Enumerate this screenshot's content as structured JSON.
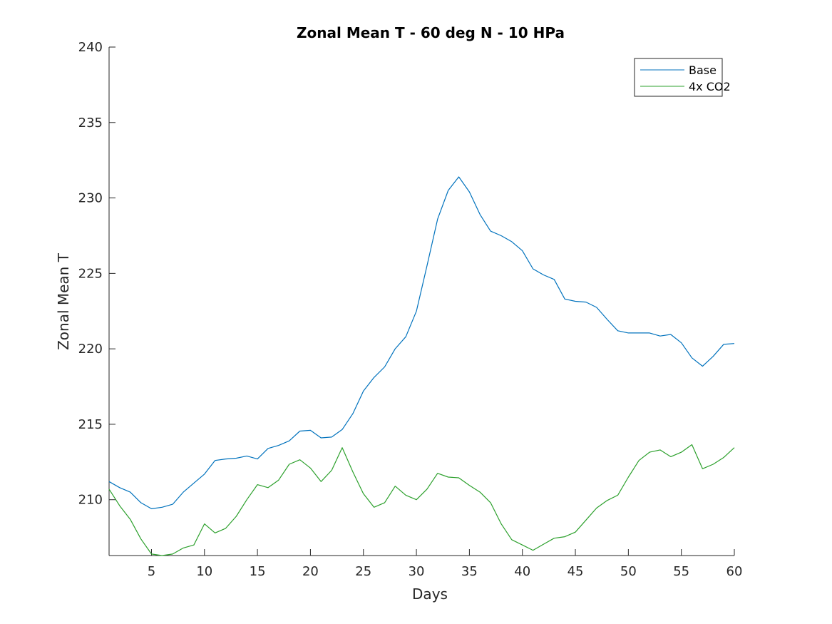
{
  "chart_data": {
    "type": "line",
    "title": "Zonal Mean T - 60 deg N - 10 HPa",
    "xlabel": "Days",
    "ylabel": "Zonal Mean T",
    "xlim": [
      1,
      60
    ],
    "ylim": [
      206.3,
      240
    ],
    "xticks": [
      5,
      10,
      15,
      20,
      25,
      30,
      35,
      40,
      45,
      50,
      55,
      60
    ],
    "yticks": [
      210,
      215,
      220,
      225,
      230,
      235,
      240
    ],
    "grid": false,
    "legend_position": "top-right",
    "x": [
      1,
      2,
      3,
      4,
      5,
      6,
      7,
      8,
      9,
      10,
      11,
      12,
      13,
      14,
      15,
      16,
      17,
      18,
      19,
      20,
      21,
      22,
      23,
      24,
      25,
      26,
      27,
      28,
      29,
      30,
      31,
      32,
      33,
      34,
      35,
      36,
      37,
      38,
      39,
      40,
      41,
      42,
      43,
      44,
      45,
      46,
      47,
      48,
      49,
      50,
      51,
      52,
      53,
      54,
      55,
      56,
      57,
      58,
      59,
      60
    ],
    "series": [
      {
        "name": "Base",
        "color": "#0072BD",
        "values": [
          211.2,
          210.8,
          210.5,
          209.8,
          209.4,
          209.5,
          209.7,
          210.5,
          211.1,
          211.7,
          212.6,
          212.7,
          212.75,
          212.9,
          212.7,
          213.4,
          213.6,
          213.9,
          214.55,
          214.6,
          214.1,
          214.15,
          214.65,
          215.7,
          217.2,
          218.1,
          218.8,
          220.0,
          220.8,
          222.5,
          225.5,
          228.6,
          230.5,
          231.4,
          230.4,
          228.9,
          227.8,
          227.5,
          227.1,
          226.5,
          225.3,
          224.9,
          224.6,
          223.3,
          223.15,
          223.1,
          222.75,
          221.95,
          221.2,
          221.05,
          221.05,
          221.05,
          220.85,
          220.95,
          220.4,
          219.4,
          218.85,
          219.5,
          220.3,
          220.35
        ]
      },
      {
        "name": "4x CO2",
        "color": "#2CA02C",
        "values": [
          210.7,
          209.6,
          208.7,
          207.4,
          206.4,
          206.3,
          206.4,
          206.8,
          207.0,
          208.4,
          207.8,
          208.1,
          208.9,
          210.0,
          211.0,
          210.8,
          211.3,
          212.35,
          212.65,
          212.1,
          211.2,
          211.95,
          213.45,
          211.85,
          210.4,
          209.5,
          209.8,
          210.9,
          210.3,
          210.0,
          210.7,
          211.75,
          211.5,
          211.45,
          210.95,
          210.5,
          209.8,
          208.4,
          207.35,
          207.0,
          206.65,
          207.05,
          207.45,
          207.55,
          207.85,
          208.65,
          209.45,
          209.95,
          210.3,
          211.5,
          212.6,
          213.15,
          213.3,
          212.85,
          213.15,
          213.65,
          212.05,
          212.35,
          212.8,
          213.45
        ]
      }
    ]
  }
}
